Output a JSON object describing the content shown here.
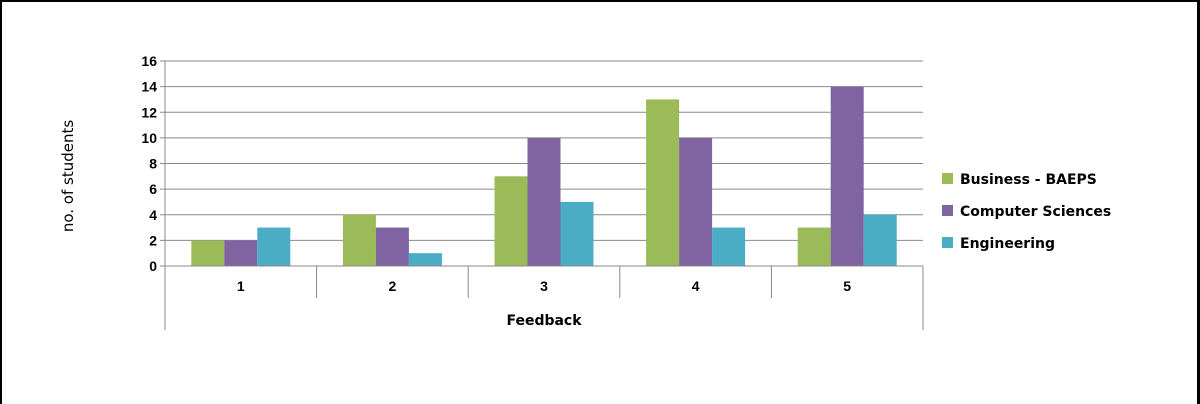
{
  "chart_data": {
    "type": "bar",
    "title": "",
    "xlabel": "Feedback",
    "ylabel": "no. of students",
    "categories": [
      "1",
      "2",
      "3",
      "4",
      "5"
    ],
    "yticks": [
      "0",
      "2",
      "4",
      "6",
      "8",
      "10",
      "12",
      "14",
      "16"
    ],
    "ylim": [
      0,
      16
    ],
    "grid": true,
    "legend_position": "right",
    "series": [
      {
        "name": "Business - BAEPS",
        "color": "#9BBB59",
        "values": [
          2,
          4,
          7,
          13,
          3
        ]
      },
      {
        "name": "Computer Sciences",
        "color": "#8064A2",
        "values": [
          2,
          3,
          10,
          10,
          14
        ]
      },
      {
        "name": "Engineering",
        "color": "#4BACC6",
        "values": [
          3,
          1,
          5,
          3,
          4
        ]
      }
    ]
  }
}
